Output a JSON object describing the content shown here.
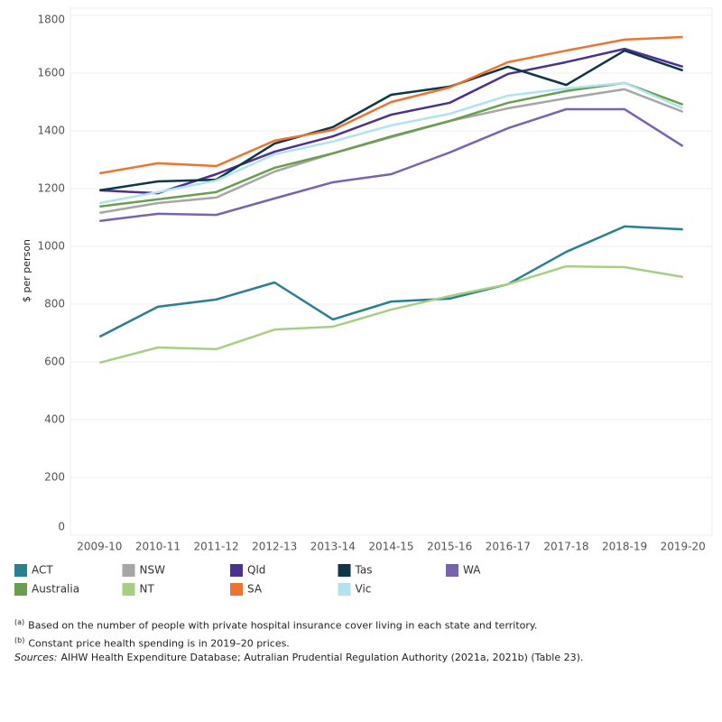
{
  "chart_data": {
    "type": "line",
    "ylabel": "$ per person",
    "categories": [
      "2009-10",
      "2010-11",
      "2011-12",
      "2012-13",
      "2013-14",
      "2014-15",
      "2015-16",
      "2016-17",
      "2017-18",
      "2018-19",
      "2019-20"
    ],
    "ylim": [
      0,
      1800
    ],
    "yticks": [
      0,
      200,
      400,
      600,
      800,
      1000,
      1200,
      1400,
      1600,
      1800
    ],
    "grid": true,
    "series": [
      {
        "name": "ACT",
        "color": "#2a7f91",
        "values": [
          687,
          791,
          816,
          875,
          747,
          809,
          819,
          869,
          981,
          1069,
          1059
        ]
      },
      {
        "name": "NSW",
        "color": "#a6a6a6",
        "values": [
          1116,
          1150,
          1169,
          1259,
          1322,
          1378,
          1434,
          1478,
          1513,
          1544,
          1466
        ]
      },
      {
        "name": "Qld",
        "color": "#4b3192",
        "values": [
          1194,
          1184,
          1250,
          1328,
          1381,
          1456,
          1497,
          1597,
          1638,
          1684,
          1622
        ]
      },
      {
        "name": "Tas",
        "color": "#0f3548",
        "values": [
          1194,
          1225,
          1231,
          1356,
          1413,
          1525,
          1553,
          1622,
          1559,
          1678,
          1609
        ]
      },
      {
        "name": "WA",
        "color": "#7a62b3",
        "values": [
          1088,
          1113,
          1109,
          1166,
          1222,
          1250,
          1325,
          1409,
          1475,
          1475,
          1347
        ]
      },
      {
        "name": "Australia",
        "color": "#6a9e4f",
        "values": [
          1138,
          1163,
          1188,
          1272,
          1322,
          1381,
          1434,
          1497,
          1538,
          1566,
          1491
        ]
      },
      {
        "name": "NT",
        "color": "#a6cf82",
        "values": [
          597,
          650,
          644,
          712,
          722,
          781,
          828,
          869,
          931,
          928,
          894
        ]
      },
      {
        "name": "SA",
        "color": "#ee7330",
        "values": [
          1253,
          1288,
          1278,
          1366,
          1403,
          1500,
          1550,
          1638,
          1678,
          1716,
          1725
        ]
      },
      {
        "name": "Vic",
        "color": "#b1e3ee",
        "values": [
          1150,
          1188,
          1228,
          1319,
          1363,
          1419,
          1459,
          1522,
          1547,
          1566,
          1478
        ]
      }
    ]
  },
  "footnotes": [
    {
      "marker": "(a)",
      "text": "Based on the number of people with private hospital insurance cover living in each state and territory."
    },
    {
      "marker": "(b)",
      "text": "Constant price health spending is in 2019–20 prices."
    }
  ],
  "sources": {
    "label": "Sources:",
    "text": "AIHW Health Expenditure Database; Autralian Prudential Regulation Authority (2021a, 2021b) (Table 23)."
  }
}
